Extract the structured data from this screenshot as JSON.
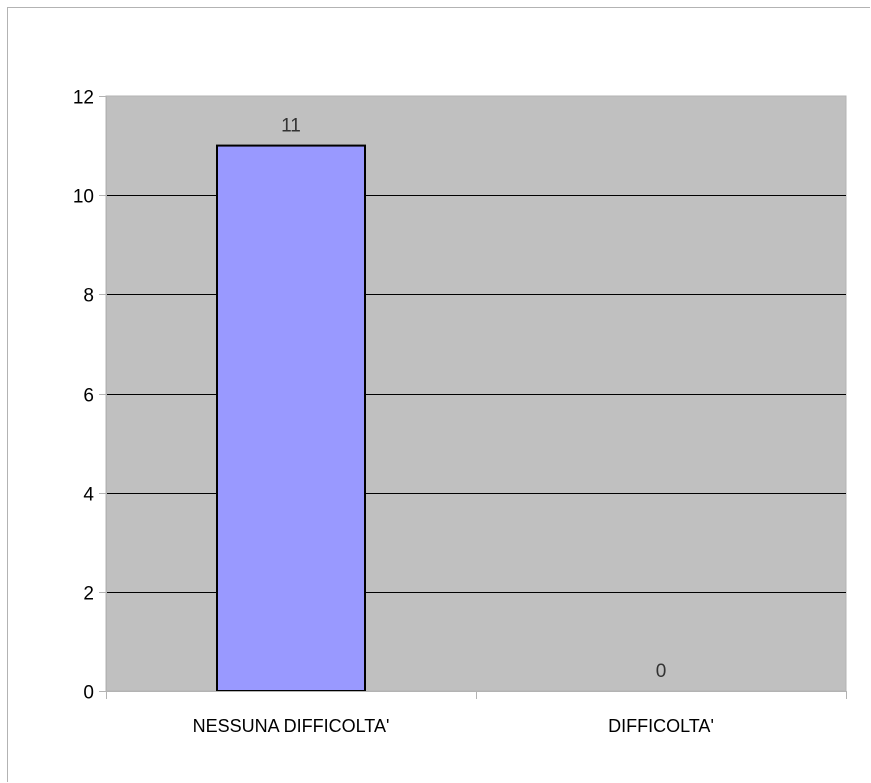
{
  "chart_data": {
    "type": "bar",
    "categories": [
      "NESSUNA DIFFICOLTA'",
      "DIFFICOLTA'"
    ],
    "values": [
      11,
      0
    ],
    "data_labels": [
      "11",
      "0"
    ],
    "yticks": [
      "0",
      "2",
      "4",
      "6",
      "8",
      "10",
      "12"
    ],
    "ylim": [
      0,
      12
    ],
    "grid": true,
    "legend": "none",
    "colors": {
      "bar": "#9999ff",
      "plot_background": "#c0c0c0",
      "gridline": "#000000",
      "border": "#b3b3b3"
    }
  }
}
